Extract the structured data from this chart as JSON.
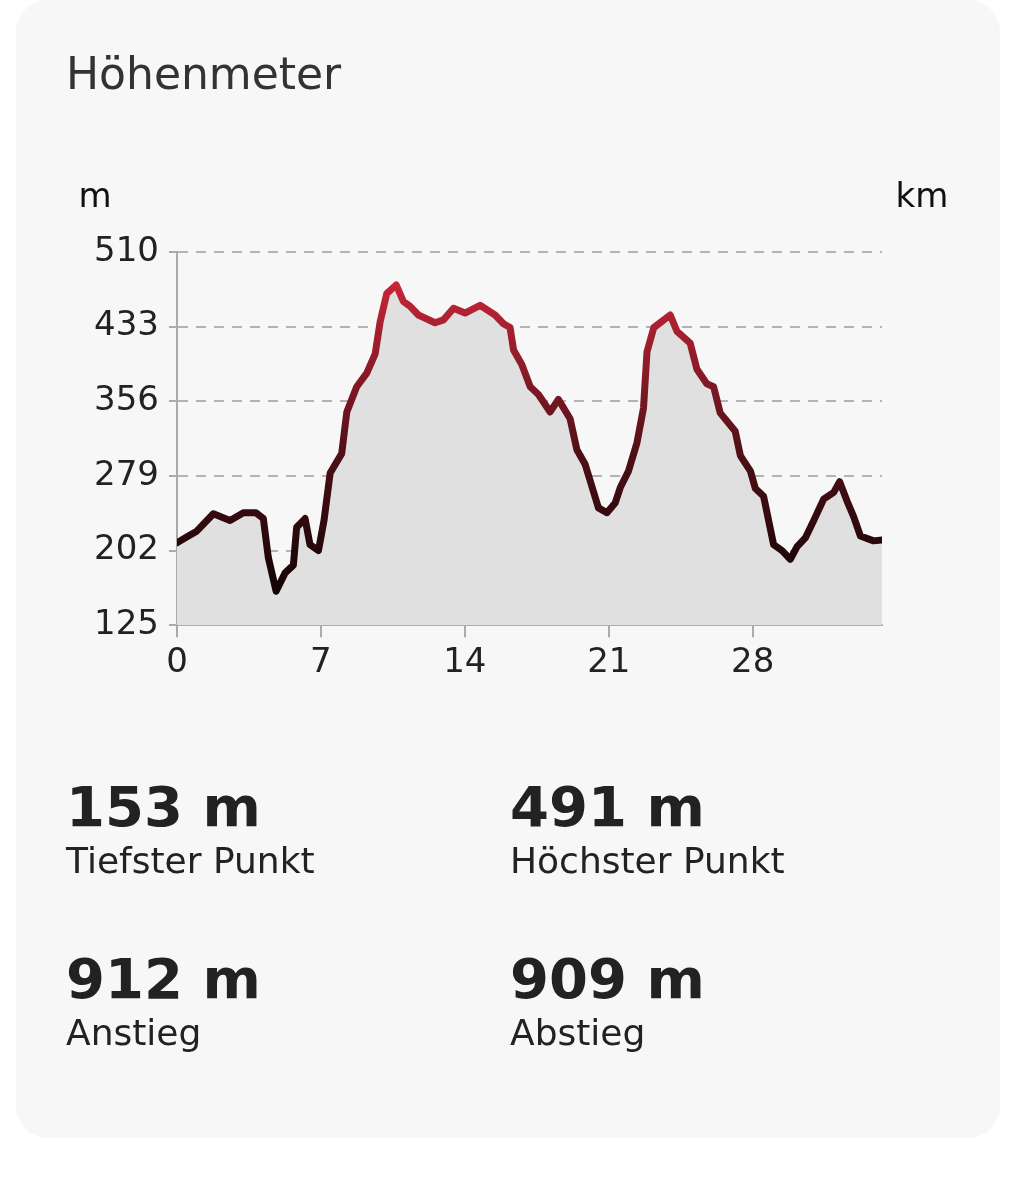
{
  "chart_data": {
    "type": "area",
    "title": "Höhenmeter",
    "xlabel": "km",
    "ylabel": "m",
    "x": [
      0,
      0.47,
      0.96,
      1.77,
      2.58,
      3.23,
      3.84,
      4.2,
      4.44,
      4.82,
      5.26,
      5.66,
      5.82,
      6.23,
      6.47,
      6.88,
      7.15,
      7.45,
      8.01,
      8.26,
      8.74,
      9.23,
      9.64,
      9.88,
      10.2,
      10.66,
      11.01,
      11.34,
      11.74,
      12.55,
      12.96,
      13.45,
      14.01,
      14.74,
      15.47,
      15.88,
      16.2,
      16.37,
      16.77,
      17.18,
      17.58,
      18.15,
      18.55,
      19.12,
      19.45,
      19.85,
      20.5,
      20.91,
      21.31,
      21.56,
      21.96,
      22.37,
      22.69,
      22.86,
      23.19,
      23.99,
      24.32,
      24.96,
      25.29,
      25.77,
      26.1,
      26.42,
      27.15,
      27.4,
      27.89,
      28.13,
      28.53,
      29.02,
      29.43,
      29.83,
      30.16,
      30.56,
      30.97,
      31.45,
      31.94,
      32.23,
      32.59,
      32.91,
      33.24,
      33.88,
      34.29
    ],
    "series": [
      {
        "color": "#dc2a3e",
        "values": [
          210,
          216,
          222,
          240,
          233,
          241,
          241,
          235,
          195,
          160,
          179,
          187,
          226,
          235,
          208,
          202,
          233,
          282,
          302,
          345,
          371,
          385,
          405,
          438,
          467,
          476,
          459,
          454,
          445,
          437,
          440,
          452,
          447,
          455,
          445,
          436,
          432,
          409,
          394,
          371,
          363,
          345,
          358,
          338,
          306,
          291,
          246,
          241,
          251,
          267,
          284,
          313,
          349,
          407,
          432,
          445,
          428,
          416,
          389,
          374,
          371,
          344,
          325,
          300,
          284,
          266,
          258,
          208,
          202,
          193,
          206,
          215,
          233,
          255,
          262,
          273,
          253,
          237,
          217,
          212,
          213
        ]
      }
    ],
    "xlim": [
      0,
      34.29
    ],
    "xticks": [
      0,
      7,
      14,
      21,
      28
    ],
    "ylim": [
      125,
      510
    ],
    "yticks": [
      125,
      202,
      279,
      356,
      433,
      510
    ],
    "grid": "y",
    "legend": false,
    "marker": "none",
    "line_style": "solid",
    "annotations": [
      "153 m",
      "Tiefster Punkt",
      "491 m",
      "Höchster Punkt",
      "912 m",
      "Anstieg",
      "909 m",
      "Abstieg"
    ]
  }
}
